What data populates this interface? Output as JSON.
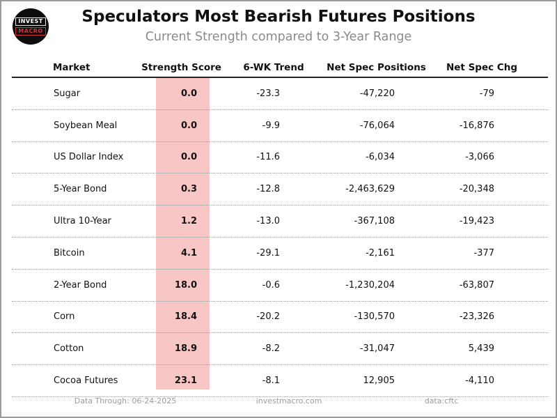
{
  "header": {
    "title": "Speculators Most Bearish Futures Positions",
    "subtitle": "Current Strength compared to 3-Year Range",
    "logo": {
      "line1": "INVEST",
      "line2": "MACRO"
    }
  },
  "table": {
    "columns": [
      "Market",
      "Strength Score",
      "6-WK Trend",
      "Net Spec Positions",
      "Net Spec Chg"
    ],
    "rows": [
      {
        "market": "Sugar",
        "score": "0.0",
        "trend": "-23.3",
        "positions": "-47,220",
        "chg": "-79"
      },
      {
        "market": "Soybean Meal",
        "score": "0.0",
        "trend": "-9.9",
        "positions": "-76,064",
        "chg": "-16,876"
      },
      {
        "market": "US Dollar Index",
        "score": "0.0",
        "trend": "-11.6",
        "positions": "-6,034",
        "chg": "-3,066"
      },
      {
        "market": "5-Year Bond",
        "score": "0.3",
        "trend": "-12.8",
        "positions": "-2,463,629",
        "chg": "-20,348"
      },
      {
        "market": "Ultra 10-Year",
        "score": "1.2",
        "trend": "-13.0",
        "positions": "-367,108",
        "chg": "-19,423"
      },
      {
        "market": "Bitcoin",
        "score": "4.1",
        "trend": "-29.1",
        "positions": "-2,161",
        "chg": "-377"
      },
      {
        "market": "2-Year Bond",
        "score": "18.0",
        "trend": "-0.6",
        "positions": "-1,230,204",
        "chg": "-63,807"
      },
      {
        "market": "Corn",
        "score": "18.4",
        "trend": "-20.2",
        "positions": "-130,570",
        "chg": "-23,326"
      },
      {
        "market": "Cotton",
        "score": "18.9",
        "trend": "-8.2",
        "positions": "-31,047",
        "chg": "5,439"
      },
      {
        "market": "Cocoa Futures",
        "score": "23.1",
        "trend": "-8.1",
        "positions": "12,905",
        "chg": "-4,110"
      }
    ]
  },
  "footer": {
    "data_through": "Data Through: 06-24-2025",
    "website": "investmacro.com",
    "source": "data:cftc"
  },
  "colors": {
    "score_band": "#f9c6c6",
    "logo_red": "#d63434",
    "header_rule": "#222222"
  },
  "chart_data": {
    "type": "table",
    "title": "Speculators Most Bearish Futures Positions",
    "subtitle": "Current Strength compared to 3-Year Range",
    "columns": [
      "Market",
      "Strength Score",
      "6-WK Trend",
      "Net Spec Positions",
      "Net Spec Chg"
    ],
    "rows": [
      [
        "Sugar",
        0.0,
        -23.3,
        -47220,
        -79
      ],
      [
        "Soybean Meal",
        0.0,
        -9.9,
        -76064,
        -16876
      ],
      [
        "US Dollar Index",
        0.0,
        -11.6,
        -6034,
        -3066
      ],
      [
        "5-Year Bond",
        0.3,
        -12.8,
        -2463629,
        -20348
      ],
      [
        "Ultra 10-Year",
        1.2,
        -13.0,
        -367108,
        -19423
      ],
      [
        "Bitcoin",
        4.1,
        -29.1,
        -2161,
        -377
      ],
      [
        "2-Year Bond",
        18.0,
        -0.6,
        -1230204,
        -63807
      ],
      [
        "Corn",
        18.4,
        -20.2,
        -130570,
        -23326
      ],
      [
        "Cotton",
        18.9,
        -8.2,
        -31047,
        5439
      ],
      [
        "Cocoa Futures",
        23.1,
        -8.1,
        12905,
        -4110
      ]
    ],
    "layout_hints": {
      "highlighted_column": "Strength Score",
      "highlight_color": "#f9c6c6",
      "row_separator": "dotted",
      "header_separator": "solid"
    }
  }
}
